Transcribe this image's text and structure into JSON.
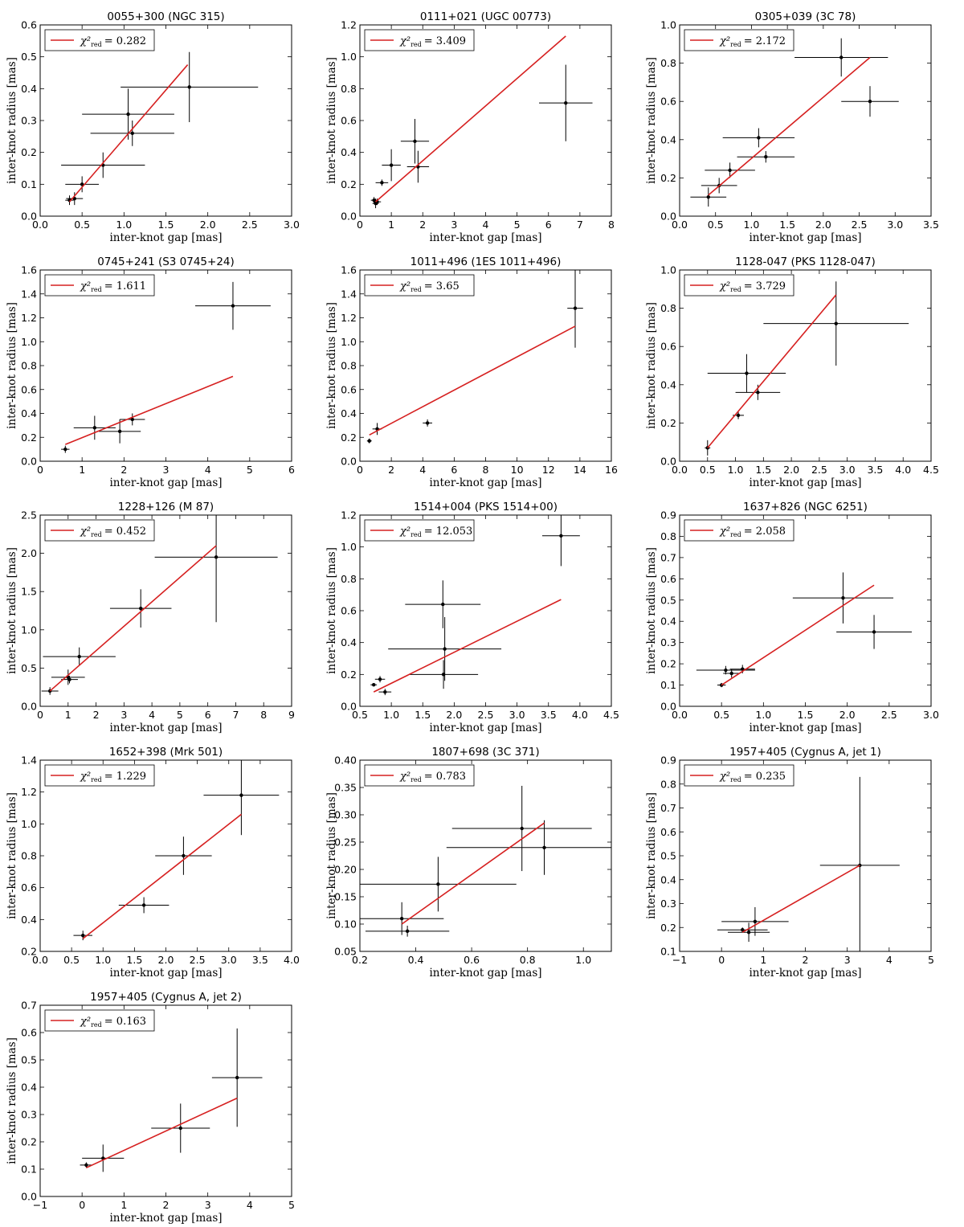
{
  "figure": {
    "xlabel": "inter-knot gap [mas]",
    "ylabel": "inter-knot radius [mas]",
    "fit_color": "#d62020",
    "point_color": "#000000",
    "legend_symbol": "χ²",
    "legend_subscript": "red"
  },
  "chart_data": [
    {
      "type": "scatter",
      "title": "0055+300 (NGC 315)",
      "xlabel": "inter-knot gap [mas]",
      "ylabel": "inter-knot radius [mas]",
      "xlim": [
        0,
        3
      ],
      "ylim": [
        0,
        0.6
      ],
      "xticks": [
        0,
        0.5,
        1,
        1.5,
        2,
        2.5,
        3
      ],
      "yticks": [
        0,
        0.1,
        0.2,
        0.3,
        0.4,
        0.5,
        0.6
      ],
      "tickfmt": [
        1,
        1
      ],
      "chi2": "0.282",
      "legend_text": "= 0.282",
      "points": [
        {
          "x": 0.35,
          "y": 0.05,
          "xerr": 0.05,
          "yerr": 0.015
        },
        {
          "x": 0.41,
          "y": 0.055,
          "xerr": 0.1,
          "yerr": 0.02
        },
        {
          "x": 0.5,
          "y": 0.1,
          "xerr": 0.2,
          "yerr": 0.025
        },
        {
          "x": 0.75,
          "y": 0.16,
          "xerr": 0.5,
          "yerr": 0.04
        },
        {
          "x": 1.05,
          "y": 0.32,
          "xerr": 0.55,
          "yerr": 0.08
        },
        {
          "x": 1.1,
          "y": 0.26,
          "xerr": 0.5,
          "yerr": 0.04
        },
        {
          "x": 1.78,
          "y": 0.405,
          "xerr": 0.82,
          "yerr": 0.11
        }
      ],
      "fit": {
        "x": [
          0.35,
          1.76
        ],
        "y": [
          0.045,
          0.475
        ]
      }
    },
    {
      "type": "scatter",
      "title": "0111+021 (UGC 00773)",
      "xlabel": "inter-knot gap [mas]",
      "ylabel": "inter-knot radius [mas]",
      "xlim": [
        0,
        8
      ],
      "ylim": [
        0,
        1.2
      ],
      "xticks": [
        0,
        1,
        2,
        3,
        4,
        5,
        6,
        7,
        8
      ],
      "yticks": [
        0,
        0.2,
        0.4,
        0.6,
        0.8,
        1.0,
        1.2
      ],
      "tickfmt": [
        0,
        1
      ],
      "chi2": "3.409",
      "legend_text": "= 3.409",
      "points": [
        {
          "x": 0.45,
          "y": 0.1,
          "xerr": 0.1,
          "yerr": 0.02
        },
        {
          "x": 0.5,
          "y": 0.08,
          "xerr": 0.1,
          "yerr": 0.03
        },
        {
          "x": 0.55,
          "y": 0.09,
          "xerr": 0.12,
          "yerr": 0.02
        },
        {
          "x": 0.7,
          "y": 0.21,
          "xerr": 0.2,
          "yerr": 0.02
        },
        {
          "x": 1.0,
          "y": 0.32,
          "xerr": 0.3,
          "yerr": 0.1
        },
        {
          "x": 1.75,
          "y": 0.47,
          "xerr": 0.45,
          "yerr": 0.14
        },
        {
          "x": 1.85,
          "y": 0.31,
          "xerr": 0.35,
          "yerr": 0.1
        },
        {
          "x": 6.55,
          "y": 0.71,
          "xerr": 0.85,
          "yerr": 0.24
        }
      ],
      "fit": {
        "x": [
          0.5,
          6.55
        ],
        "y": [
          0.09,
          1.13
        ]
      }
    },
    {
      "type": "scatter",
      "title": "0305+039 (3C 78)",
      "xlabel": "inter-knot gap [mas]",
      "ylabel": "inter-knot radius [mas]",
      "xlim": [
        0,
        3.5
      ],
      "ylim": [
        0,
        1.0
      ],
      "xticks": [
        0,
        0.5,
        1,
        1.5,
        2,
        2.5,
        3,
        3.5
      ],
      "yticks": [
        0,
        0.2,
        0.4,
        0.6,
        0.8,
        1.0
      ],
      "tickfmt": [
        1,
        1
      ],
      "chi2": "2.172",
      "legend_text": "= 2.172",
      "points": [
        {
          "x": 0.4,
          "y": 0.1,
          "xerr": 0.25,
          "yerr": 0.05
        },
        {
          "x": 0.55,
          "y": 0.16,
          "xerr": 0.25,
          "yerr": 0.04
        },
        {
          "x": 0.7,
          "y": 0.24,
          "xerr": 0.35,
          "yerr": 0.04
        },
        {
          "x": 1.1,
          "y": 0.41,
          "xerr": 0.5,
          "yerr": 0.05
        },
        {
          "x": 1.2,
          "y": 0.31,
          "xerr": 0.4,
          "yerr": 0.03
        },
        {
          "x": 2.25,
          "y": 0.83,
          "xerr": 0.65,
          "yerr": 0.1
        },
        {
          "x": 2.65,
          "y": 0.6,
          "xerr": 0.4,
          "yerr": 0.08
        }
      ],
      "fit": {
        "x": [
          0.4,
          2.65
        ],
        "y": [
          0.11,
          0.83
        ]
      }
    },
    {
      "type": "scatter",
      "title": "0745+241 (S3 0745+24)",
      "xlabel": "inter-knot gap [mas]",
      "ylabel": "inter-knot radius [mas]",
      "xlim": [
        0,
        6
      ],
      "ylim": [
        0,
        1.6
      ],
      "xticks": [
        0,
        1,
        2,
        3,
        4,
        5,
        6
      ],
      "yticks": [
        0,
        0.2,
        0.4,
        0.6,
        0.8,
        1.0,
        1.2,
        1.4,
        1.6
      ],
      "tickfmt": [
        0,
        1
      ],
      "chi2": "1.611",
      "legend_text": "= 1.611",
      "points": [
        {
          "x": 0.6,
          "y": 0.1,
          "xerr": 0.1,
          "yerr": 0.03
        },
        {
          "x": 1.3,
          "y": 0.28,
          "xerr": 0.5,
          "yerr": 0.1
        },
        {
          "x": 1.9,
          "y": 0.25,
          "xerr": 0.5,
          "yerr": 0.1
        },
        {
          "x": 2.2,
          "y": 0.35,
          "xerr": 0.3,
          "yerr": 0.05
        },
        {
          "x": 4.6,
          "y": 1.3,
          "xerr": 0.9,
          "yerr": 0.2
        }
      ],
      "fit": {
        "x": [
          0.6,
          4.6
        ],
        "y": [
          0.14,
          0.71
        ]
      }
    },
    {
      "type": "scatter",
      "title": "1011+496 (1ES 1011+496)",
      "xlabel": "inter-knot gap [mas]",
      "ylabel": "inter-knot radius [mas]",
      "xlim": [
        0,
        16
      ],
      "ylim": [
        0,
        1.6
      ],
      "xticks": [
        0,
        2,
        4,
        6,
        8,
        10,
        12,
        14,
        16
      ],
      "yticks": [
        0,
        0.2,
        0.4,
        0.6,
        0.8,
        1.0,
        1.2,
        1.4,
        1.6
      ],
      "tickfmt": [
        0,
        1
      ],
      "chi2": "3.65",
      "legend_text": "= 3.65",
      "points": [
        {
          "x": 0.6,
          "y": 0.17,
          "xerr": 0.15,
          "yerr": 0.02
        },
        {
          "x": 1.1,
          "y": 0.27,
          "xerr": 0.3,
          "yerr": 0.05
        },
        {
          "x": 4.3,
          "y": 0.32,
          "xerr": 0.3,
          "yerr": 0.03
        },
        {
          "x": 13.7,
          "y": 1.28,
          "xerr": 0.5,
          "yerr": 0.33
        }
      ],
      "fit": {
        "x": [
          0.6,
          13.7
        ],
        "y": [
          0.22,
          1.13
        ]
      }
    },
    {
      "type": "scatter",
      "title": "1128-047 (PKS 1128-047)",
      "xlabel": "inter-knot gap [mas]",
      "ylabel": "inter-knot radius [mas]",
      "xlim": [
        0,
        4.5
      ],
      "ylim": [
        0,
        1.0
      ],
      "xticks": [
        0,
        0.5,
        1,
        1.5,
        2,
        2.5,
        3,
        3.5,
        4,
        4.5
      ],
      "yticks": [
        0,
        0.2,
        0.4,
        0.6,
        0.8,
        1.0
      ],
      "tickfmt": [
        1,
        1
      ],
      "chi2": "3.729",
      "legend_text": "= 3.729",
      "points": [
        {
          "x": 0.5,
          "y": 0.07,
          "xerr": 0.05,
          "yerr": 0.04
        },
        {
          "x": 1.05,
          "y": 0.24,
          "xerr": 0.1,
          "yerr": 0.02
        },
        {
          "x": 1.2,
          "y": 0.46,
          "xerr": 0.7,
          "yerr": 0.1
        },
        {
          "x": 1.4,
          "y": 0.36,
          "xerr": 0.4,
          "yerr": 0.04
        },
        {
          "x": 2.8,
          "y": 0.72,
          "xerr": 1.3,
          "yerr": 0.22
        }
      ],
      "fit": {
        "x": [
          0.5,
          2.8
        ],
        "y": [
          0.07,
          0.87
        ]
      }
    },
    {
      "type": "scatter",
      "title": "1228+126 (M 87)",
      "xlabel": "inter-knot gap [mas]",
      "ylabel": "inter-knot radius [mas]",
      "xlim": [
        0,
        9
      ],
      "ylim": [
        0,
        2.5
      ],
      "xticks": [
        0,
        1,
        2,
        3,
        4,
        5,
        6,
        7,
        8,
        9
      ],
      "yticks": [
        0,
        0.5,
        1.0,
        1.5,
        2.0,
        2.5
      ],
      "tickfmt": [
        0,
        1
      ],
      "chi2": "0.452",
      "legend_text": "= 0.452",
      "points": [
        {
          "x": 0.35,
          "y": 0.2,
          "xerr": 0.3,
          "yerr": 0.05
        },
        {
          "x": 1.0,
          "y": 0.38,
          "xerr": 0.6,
          "yerr": 0.1
        },
        {
          "x": 1.05,
          "y": 0.35,
          "xerr": 0.3,
          "yerr": 0.05
        },
        {
          "x": 1.4,
          "y": 0.65,
          "xerr": 1.3,
          "yerr": 0.12
        },
        {
          "x": 3.6,
          "y": 1.28,
          "xerr": 1.1,
          "yerr": 0.25
        },
        {
          "x": 6.3,
          "y": 1.95,
          "xerr": 2.2,
          "yerr": 0.85
        }
      ],
      "fit": {
        "x": [
          0.35,
          6.3
        ],
        "y": [
          0.2,
          2.1
        ]
      }
    },
    {
      "type": "scatter",
      "title": "1514+004 (PKS 1514+00)",
      "xlabel": "inter-knot gap [mas]",
      "ylabel": "inter-knot radius [mas]",
      "xlim": [
        0.5,
        4.5
      ],
      "ylim": [
        0,
        1.2
      ],
      "xticks": [
        0.5,
        1,
        1.5,
        2,
        2.5,
        3,
        3.5,
        4,
        4.5
      ],
      "yticks": [
        0,
        0.2,
        0.4,
        0.6,
        0.8,
        1.0,
        1.2
      ],
      "tickfmt": [
        1,
        1
      ],
      "chi2": "12.053",
      "legend_text": "= 12.053",
      "points": [
        {
          "x": 0.72,
          "y": 0.135,
          "xerr": 0.05,
          "yerr": 0.01
        },
        {
          "x": 0.82,
          "y": 0.17,
          "xerr": 0.08,
          "yerr": 0.02
        },
        {
          "x": 0.9,
          "y": 0.09,
          "xerr": 0.1,
          "yerr": 0.02
        },
        {
          "x": 1.82,
          "y": 0.64,
          "xerr": 0.6,
          "yerr": 0.15
        },
        {
          "x": 1.83,
          "y": 0.2,
          "xerr": 0.55,
          "yerr": 0.09
        },
        {
          "x": 1.85,
          "y": 0.36,
          "xerr": 0.9,
          "yerr": 0.2
        },
        {
          "x": 3.7,
          "y": 1.07,
          "xerr": 0.3,
          "yerr": 0.19
        }
      ],
      "fit": {
        "x": [
          0.72,
          3.7
        ],
        "y": [
          0.09,
          0.67
        ]
      }
    },
    {
      "type": "scatter",
      "title": "1637+826 (NGC 6251)",
      "xlabel": "inter-knot gap [mas]",
      "ylabel": "inter-knot radius [mas]",
      "xlim": [
        0,
        3
      ],
      "ylim": [
        0,
        0.9
      ],
      "xticks": [
        0,
        0.5,
        1,
        1.5,
        2,
        2.5,
        3
      ],
      "yticks": [
        0,
        0.1,
        0.2,
        0.3,
        0.4,
        0.5,
        0.6,
        0.7,
        0.8,
        0.9
      ],
      "tickfmt": [
        1,
        1
      ],
      "chi2": "2.058",
      "legend_text": "= 2.058",
      "points": [
        {
          "x": 0.5,
          "y": 0.1,
          "xerr": 0.05,
          "yerr": 0.01
        },
        {
          "x": 0.55,
          "y": 0.17,
          "xerr": 0.35,
          "yerr": 0.02
        },
        {
          "x": 0.62,
          "y": 0.155,
          "xerr": 0.1,
          "yerr": 0.02
        },
        {
          "x": 0.75,
          "y": 0.175,
          "xerr": 0.15,
          "yerr": 0.02
        },
        {
          "x": 1.95,
          "y": 0.51,
          "xerr": 0.6,
          "yerr": 0.12
        },
        {
          "x": 2.32,
          "y": 0.35,
          "xerr": 0.45,
          "yerr": 0.08
        }
      ],
      "fit": {
        "x": [
          0.5,
          2.32
        ],
        "y": [
          0.1,
          0.57
        ]
      }
    },
    {
      "type": "scatter",
      "title": "1652+398 (Mrk 501)",
      "xlabel": "inter-knot gap [mas]",
      "ylabel": "inter-knot radius [mas]",
      "xlim": [
        0,
        4
      ],
      "ylim": [
        0.2,
        1.4
      ],
      "xticks": [
        0,
        0.5,
        1,
        1.5,
        2,
        2.5,
        3,
        3.5,
        4
      ],
      "yticks": [
        0.2,
        0.4,
        0.6,
        0.8,
        1.0,
        1.2,
        1.4
      ],
      "tickfmt": [
        1,
        1
      ],
      "chi2": "1.229",
      "legend_text": "= 1.229",
      "points": [
        {
          "x": 0.68,
          "y": 0.3,
          "xerr": 0.15,
          "yerr": 0.03
        },
        {
          "x": 1.65,
          "y": 0.49,
          "xerr": 0.4,
          "yerr": 0.05
        },
        {
          "x": 2.28,
          "y": 0.8,
          "xerr": 0.45,
          "yerr": 0.12
        },
        {
          "x": 3.2,
          "y": 1.18,
          "xerr": 0.6,
          "yerr": 0.25
        }
      ],
      "fit": {
        "x": [
          0.68,
          3.2
        ],
        "y": [
          0.28,
          1.06
        ]
      }
    },
    {
      "type": "scatter",
      "title": "1807+698 (3C 371)",
      "xlabel": "inter-knot gap [mas]",
      "ylabel": "inter-knot radius [mas]",
      "xlim": [
        0.2,
        1.1
      ],
      "ylim": [
        0.05,
        0.4
      ],
      "xticks": [
        0.2,
        0.4,
        0.6,
        0.8,
        1.0
      ],
      "yticks": [
        0.05,
        0.1,
        0.15,
        0.2,
        0.25,
        0.3,
        0.35,
        0.4
      ],
      "tickfmt": [
        1,
        2
      ],
      "chi2": "0.783",
      "legend_text": "= 0.783",
      "points": [
        {
          "x": 0.35,
          "y": 0.11,
          "xerr": 0.15,
          "yerr": 0.03
        },
        {
          "x": 0.37,
          "y": 0.087,
          "xerr": 0.15,
          "yerr": 0.01
        },
        {
          "x": 0.48,
          "y": 0.173,
          "xerr": 0.28,
          "yerr": 0.05
        },
        {
          "x": 0.78,
          "y": 0.275,
          "xerr": 0.25,
          "yerr": 0.078
        },
        {
          "x": 0.86,
          "y": 0.24,
          "xerr": 0.35,
          "yerr": 0.05
        }
      ],
      "fit": {
        "x": [
          0.35,
          0.86
        ],
        "y": [
          0.1,
          0.285
        ]
      }
    },
    {
      "type": "scatter",
      "title": "1957+405 (Cygnus A, jet 1)",
      "xlabel": "inter-knot gap [mas]",
      "ylabel": "inter-knot radius [mas]",
      "xlim": [
        -1,
        5
      ],
      "ylim": [
        0.1,
        0.9
      ],
      "xticks": [
        -1,
        0,
        1,
        2,
        3,
        4,
        5
      ],
      "yticks": [
        0.1,
        0.2,
        0.3,
        0.4,
        0.5,
        0.6,
        0.7,
        0.8,
        0.9
      ],
      "tickfmt": [
        0,
        1
      ],
      "chi2": "0.235",
      "legend_text": "= 0.235",
      "points": [
        {
          "x": 0.5,
          "y": 0.19,
          "xerr": 0.6,
          "yerr": 0.01
        },
        {
          "x": 0.65,
          "y": 0.18,
          "xerr": 0.5,
          "yerr": 0.04
        },
        {
          "x": 0.8,
          "y": 0.225,
          "xerr": 0.8,
          "yerr": 0.06
        },
        {
          "x": 3.3,
          "y": 0.46,
          "xerr": 0.95,
          "yerr": 0.37
        }
      ],
      "fit": {
        "x": [
          0.5,
          3.3
        ],
        "y": [
          0.18,
          0.46
        ]
      }
    },
    {
      "type": "scatter",
      "title": "1957+405 (Cygnus A, jet 2)",
      "xlabel": "inter-knot gap [mas]",
      "ylabel": "inter-knot radius [mas]",
      "xlim": [
        -1,
        5
      ],
      "ylim": [
        0,
        0.7
      ],
      "xticks": [
        -1,
        0,
        1,
        2,
        3,
        4,
        5
      ],
      "yticks": [
        0,
        0.1,
        0.2,
        0.3,
        0.4,
        0.5,
        0.6,
        0.7
      ],
      "tickfmt": [
        0,
        1
      ],
      "chi2": "0.163",
      "legend_text": "= 0.163",
      "points": [
        {
          "x": 0.1,
          "y": 0.115,
          "xerr": 0.15,
          "yerr": 0.01
        },
        {
          "x": 0.5,
          "y": 0.14,
          "xerr": 0.5,
          "yerr": 0.05
        },
        {
          "x": 2.35,
          "y": 0.25,
          "xerr": 0.7,
          "yerr": 0.09
        },
        {
          "x": 3.7,
          "y": 0.435,
          "xerr": 0.6,
          "yerr": 0.18
        }
      ],
      "fit": {
        "x": [
          0.1,
          3.7
        ],
        "y": [
          0.105,
          0.36
        ]
      }
    }
  ]
}
